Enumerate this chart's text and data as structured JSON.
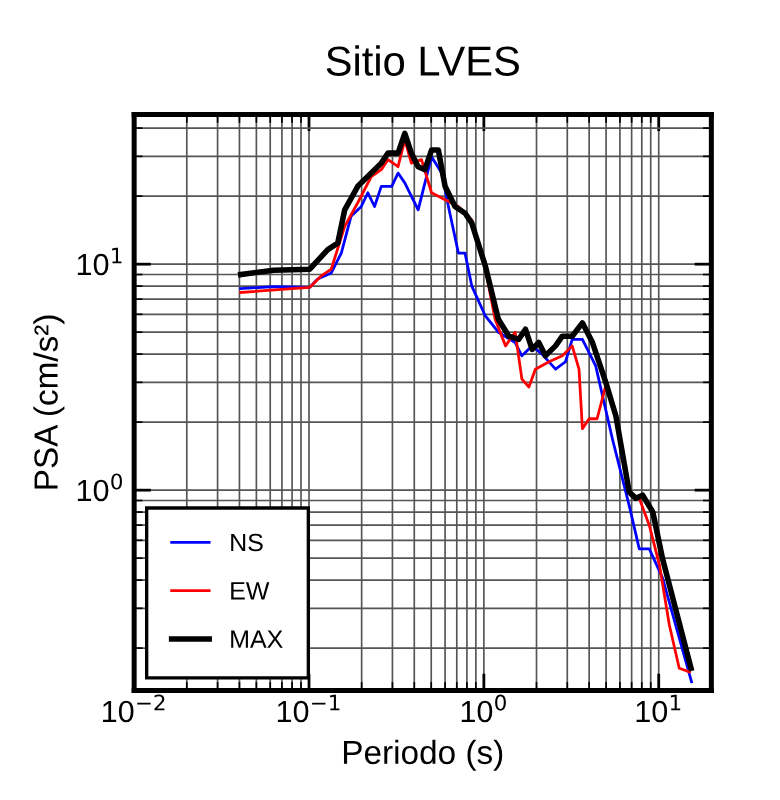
{
  "chart_data": {
    "type": "line",
    "title": "Sitio LVES",
    "xlabel": "Periodo (s)",
    "ylabel": "PSA (cm/s²)",
    "log": "xy",
    "grid": true,
    "legend": "bottom left",
    "line_style": "solid",
    "marker": "none",
    "xlim": [
      0.01,
      20
    ],
    "ylim": [
      0.13,
      46
    ],
    "xticks": [
      {
        "value": 0.01,
        "label": "10$^{−2}$"
      },
      {
        "value": 0.1,
        "label": "10$^{−1}$"
      },
      {
        "value": 1,
        "label": "10$^{0}$"
      },
      {
        "value": 10,
        "label": "10$^{1}$"
      }
    ],
    "yticks": [
      {
        "value": 1,
        "label": "10$^{0}$"
      },
      {
        "value": 10,
        "label": "10$^{1}$"
      }
    ],
    "series": [
      {
        "name": "NS",
        "color": "#0000ff",
        "x": [
          0.0407,
          0.063,
          0.101,
          0.112,
          0.134,
          0.153,
          0.174,
          0.199,
          0.217,
          0.237,
          0.259,
          0.297,
          0.323,
          0.353,
          0.421,
          0.502,
          0.574,
          0.627,
          0.715,
          0.78,
          0.853,
          1.02,
          1.21,
          1.51,
          1.65,
          1.89,
          2.15,
          2.57,
          2.93,
          3.2,
          3.66,
          4.36,
          5.44,
          6.78,
          7.74,
          8.83,
          10.5,
          15.4
        ],
        "values": [
          7.8,
          7.95,
          7.9,
          8.6,
          9.15,
          11.2,
          16.3,
          18,
          20.7,
          18,
          22.1,
          22.1,
          25.3,
          22.9,
          17.4,
          29.9,
          25.3,
          18,
          11.2,
          11.2,
          8.0,
          5.9,
          5.0,
          4.5,
          3.93,
          4.35,
          4.0,
          3.43,
          3.7,
          4.65,
          4.65,
          3.55,
          1.68,
          0.855,
          0.55,
          0.55,
          0.41,
          0.142
        ]
      },
      {
        "name": "EW",
        "color": "#ff0000",
        "x": [
          0.0407,
          0.101,
          0.117,
          0.134,
          0.16,
          0.19,
          0.227,
          0.259,
          0.283,
          0.323,
          0.353,
          0.385,
          0.44,
          0.502,
          0.6,
          0.715,
          0.853,
          1.02,
          1.16,
          1.33,
          1.51,
          1.65,
          1.81,
          1.97,
          2.36,
          2.81,
          3.2,
          3.5,
          3.66,
          4.0,
          4.44,
          4.98,
          5.69,
          6.78,
          7.74,
          8.83,
          10.1,
          11.5,
          13.1,
          15.0
        ],
        "values": [
          7.5,
          7.9,
          8.85,
          9.5,
          14.7,
          18.7,
          24.4,
          26.2,
          29,
          27,
          35.5,
          28,
          29,
          20.7,
          19.3,
          18,
          15.7,
          9.5,
          5.7,
          4.35,
          5.0,
          3.1,
          2.86,
          3.43,
          3.7,
          3.93,
          4.35,
          3.43,
          1.87,
          2.07,
          2.07,
          2.9,
          2.2,
          0.98,
          0.92,
          0.7,
          0.466,
          0.253,
          0.163,
          0.157
        ]
      },
      {
        "name": "MAX",
        "color": "#000000",
        "x": [
          0.0407,
          0.063,
          0.101,
          0.128,
          0.146,
          0.16,
          0.19,
          0.227,
          0.259,
          0.283,
          0.323,
          0.353,
          0.385,
          0.421,
          0.46,
          0.502,
          0.549,
          0.6,
          0.684,
          0.781,
          0.853,
          1.02,
          1.21,
          1.39,
          1.58,
          1.73,
          1.89,
          2.06,
          2.25,
          2.57,
          2.81,
          3.2,
          3.66,
          4.18,
          4.98,
          5.69,
          6.78,
          7.41,
          8.09,
          9.25,
          10.5,
          15.3
        ],
        "values": [
          9.0,
          9.4,
          9.5,
          11.6,
          12.4,
          17.4,
          22.1,
          25.3,
          28,
          31,
          31,
          37.9,
          31,
          27,
          26.2,
          32,
          32,
          22.1,
          18,
          16.8,
          15.2,
          9.8,
          5.7,
          4.8,
          4.65,
          5.15,
          4.2,
          4.5,
          3.93,
          4.35,
          4.8,
          4.8,
          5.5,
          4.5,
          3.0,
          2.13,
          0.98,
          0.92,
          0.95,
          0.8,
          0.5,
          0.163
        ]
      }
    ]
  }
}
